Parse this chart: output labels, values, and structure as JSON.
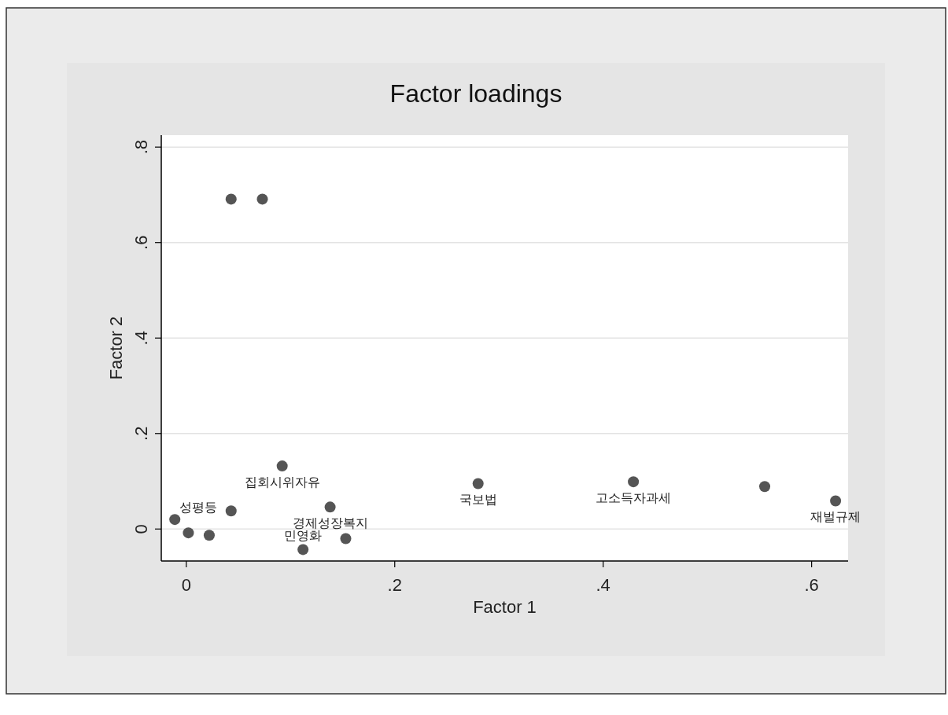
{
  "chart_data": {
    "type": "scatter",
    "title": "Factor loadings",
    "xlabel": "Factor 1",
    "ylabel": "Factor 2",
    "xlim": [
      -0.024,
      0.635
    ],
    "ylim": [
      -0.067,
      0.825
    ],
    "xticks": [
      {
        "value": 0,
        "label": "0"
      },
      {
        "value": 0.2,
        "label": ".2"
      },
      {
        "value": 0.4,
        "label": ".4"
      },
      {
        "value": 0.6,
        "label": ".6"
      }
    ],
    "yticks": [
      {
        "value": 0,
        "label": "0"
      },
      {
        "value": 0.2,
        "label": ".2"
      },
      {
        "value": 0.4,
        "label": ".4"
      },
      {
        "value": 0.6,
        "label": ".6"
      },
      {
        "value": 0.8,
        "label": ".8"
      }
    ],
    "grid": "y",
    "marker": "circle",
    "series": [
      {
        "color": "#555555",
        "x": [
          0.043,
          0.073,
          0.092,
          0.28,
          0.429,
          0.555,
          0.623,
          0.138,
          -0.011,
          0.043,
          0.002,
          0.022,
          0.153,
          0.112
        ],
        "values": [
          0.691,
          0.691,
          0.132,
          0.095,
          0.099,
          0.089,
          0.059,
          0.046,
          0.02,
          0.038,
          -0.008,
          -0.013,
          -0.02,
          -0.043
        ]
      }
    ],
    "annotations": [
      {
        "text": "집회시위자유",
        "x": 0.092,
        "y": 0.132
      },
      {
        "text": "국보법",
        "x": 0.28,
        "y": 0.095
      },
      {
        "text": "고소득자과세",
        "x": 0.429,
        "y": 0.099
      },
      {
        "text": "민영화",
        "x": 0.112,
        "y": -0.043
      },
      {
        "text": "성평등",
        "x": -0.011,
        "y": 0.02
      },
      {
        "text": "재벌규제",
        "x": 0.623,
        "y": 0.059
      },
      {
        "text": "경제성장복지",
        "x": 0.138,
        "y": 0.046
      }
    ]
  }
}
